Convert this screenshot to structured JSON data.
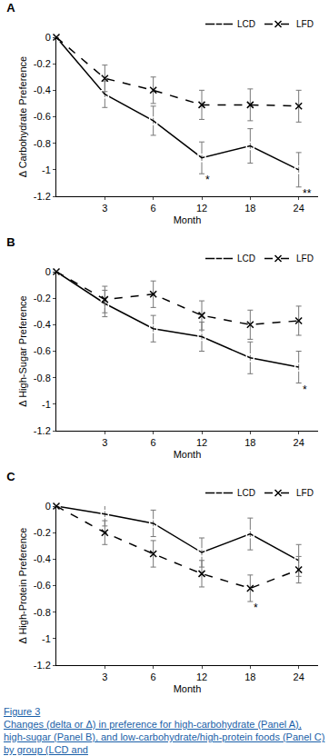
{
  "chart_data": [
    {
      "type": "line",
      "title": "A",
      "x_label": "Month",
      "y_label": "Δ Carbohydrate Preference",
      "categories": [
        null,
        "3",
        "6",
        "12",
        "18",
        "24"
      ],
      "ylim": [
        -1.2,
        0
      ],
      "yticks": [
        -1.2,
        -1,
        -0.8,
        -0.6,
        -0.4,
        -0.2,
        0
      ],
      "legend": "top right",
      "series": [
        {
          "name": "LCD",
          "color": "#000000",
          "line_style": "solid",
          "marker": "square-open",
          "values": [
            0,
            -0.43,
            -0.63,
            -0.91,
            -0.82,
            -1.0
          ],
          "errors": [
            0,
            0.1,
            0.11,
            0.12,
            0.13,
            0.13
          ]
        },
        {
          "name": "LFD",
          "color": "#000000",
          "line_style": "dash",
          "marker": "x-thin-open",
          "values": [
            0,
            -0.31,
            -0.4,
            -0.51,
            -0.51,
            -0.52
          ],
          "errors": [
            0,
            0.1,
            0.1,
            0.11,
            0.12,
            0.12
          ]
        }
      ],
      "annotations": [
        {
          "text": "*",
          "series": "LCD",
          "category": "12"
        },
        {
          "text": "**",
          "series": "LCD",
          "category": "24"
        }
      ]
    },
    {
      "type": "line",
      "title": "B",
      "x_label": "Month",
      "y_label": "Δ High-Sugar Preference",
      "categories": [
        null,
        "3",
        "6",
        "12",
        "18",
        "24"
      ],
      "ylim": [
        -1.2,
        0
      ],
      "yticks": [
        -1.2,
        -1,
        -0.8,
        -0.6,
        -0.4,
        -0.2,
        0
      ],
      "legend": "top right",
      "series": [
        {
          "name": "LCD",
          "color": "#000000",
          "line_style": "solid",
          "marker": "square-open",
          "values": [
            0,
            -0.24,
            -0.43,
            -0.49,
            -0.65,
            -0.72
          ],
          "errors": [
            0,
            0.1,
            0.1,
            0.11,
            0.12,
            0.12
          ]
        },
        {
          "name": "LFD",
          "color": "#000000",
          "line_style": "dash",
          "marker": "x-thin-open",
          "values": [
            0,
            -0.21,
            -0.17,
            -0.33,
            -0.4,
            -0.37
          ],
          "errors": [
            0,
            0.1,
            0.1,
            0.11,
            0.11,
            0.11
          ]
        }
      ],
      "annotations": [
        {
          "text": "*",
          "series": "LCD",
          "category": "24"
        }
      ]
    },
    {
      "type": "line",
      "title": "C",
      "x_label": "Month",
      "y_label": "Δ High-Protein Preference",
      "categories": [
        null,
        "3",
        "6",
        "12",
        "18",
        "24"
      ],
      "ylim": [
        -1.2,
        0
      ],
      "yticks": [
        -1.2,
        -1,
        -0.8,
        -0.6,
        -0.4,
        -0.2,
        0
      ],
      "legend": "top right",
      "series": [
        {
          "name": "LCD",
          "color": "#000000",
          "line_style": "solid",
          "marker": "square-open",
          "values": [
            0,
            -0.06,
            -0.13,
            -0.35,
            -0.21,
            -0.41
          ],
          "errors": [
            0,
            0.09,
            0.1,
            0.11,
            0.12,
            0.12
          ]
        },
        {
          "name": "LFD",
          "color": "#000000",
          "line_style": "dash",
          "marker": "x-thin-open",
          "values": [
            0,
            -0.2,
            -0.36,
            -0.51,
            -0.62,
            -0.48
          ],
          "errors": [
            0,
            0.09,
            0.1,
            0.1,
            0.1,
            0.1
          ]
        }
      ],
      "annotations": [
        {
          "text": "*",
          "series": "LFD",
          "category": "18"
        }
      ]
    }
  ],
  "caption": {
    "label": "Figure 3",
    "text": "Changes (delta or Δ) in preference for high-carbohydrate (Panel A), high-sugar (Panel B), and low-carbohydrate/high-protein foods (Panel C) by group (LCD and"
  }
}
